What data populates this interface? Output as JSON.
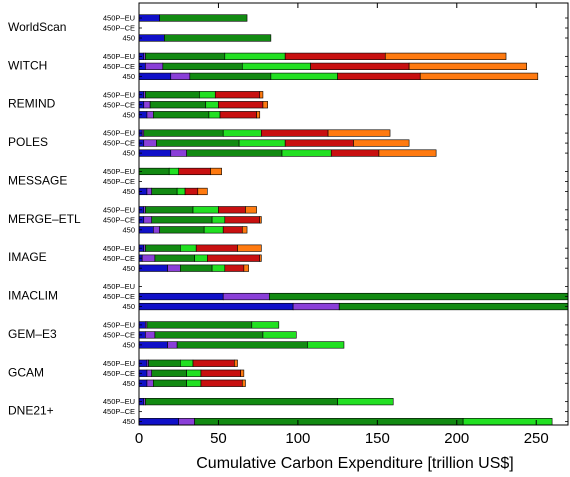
{
  "chart_data": {
    "type": "bar",
    "orientation": "horizontal",
    "stacked": true,
    "xlabel": "Cumulative Carbon Expenditure [trillion US$]",
    "xlim": [
      0,
      270
    ],
    "xticks": [
      0,
      50,
      100,
      150,
      200,
      250
    ],
    "grid": false,
    "legend": "none",
    "scenarios": [
      "450P–EU",
      "450P–CE",
      "450"
    ],
    "segment_colors": [
      "#1010c8",
      "#8a3fd8",
      "#128a12",
      "#22e022",
      "#c81010",
      "#ff7a10"
    ],
    "models": [
      {
        "name": "WorldScan",
        "bars": [
          {
            "scenario": "450P–EU",
            "segments": [
              13,
              0,
              55,
              0,
              0,
              0
            ]
          },
          {
            "scenario": "450P–CE",
            "segments": []
          },
          {
            "scenario": "450",
            "segments": [
              16,
              0,
              67,
              0,
              0,
              0
            ]
          }
        ]
      },
      {
        "name": "WITCH",
        "bars": [
          {
            "scenario": "450P–EU",
            "segments": [
              3,
              1,
              50,
              38,
              63,
              76
            ]
          },
          {
            "scenario": "450P–CE",
            "segments": [
              4,
              11,
              50,
              43,
              62,
              74
            ]
          },
          {
            "scenario": "450",
            "segments": [
              20,
              12,
              51,
              42,
              52,
              74
            ]
          }
        ]
      },
      {
        "name": "REMIND",
        "bars": [
          {
            "scenario": "450P–EU",
            "segments": [
              3,
              1,
              34,
              10,
              28,
              2
            ]
          },
          {
            "scenario": "450P–CE",
            "segments": [
              3,
              4,
              35,
              8,
              28,
              3
            ]
          },
          {
            "scenario": "450",
            "segments": [
              5,
              4,
              35,
              7,
              23,
              2
            ]
          }
        ]
      },
      {
        "name": "POLES",
        "bars": [
          {
            "scenario": "450P–EU",
            "segments": [
              2,
              1,
              50,
              24,
              42,
              39
            ]
          },
          {
            "scenario": "450P–CE",
            "segments": [
              3,
              8,
              52,
              29,
              43,
              35
            ]
          },
          {
            "scenario": "450",
            "segments": [
              20,
              10,
              60,
              31,
              30,
              36
            ]
          }
        ]
      },
      {
        "name": "MESSAGE",
        "bars": [
          {
            "scenario": "450P–EU",
            "segments": [
              0,
              0,
              19,
              6,
              20,
              7
            ]
          },
          {
            "scenario": "450P–CE",
            "segments": []
          },
          {
            "scenario": "450",
            "segments": [
              5,
              3,
              16,
              5,
              8,
              6
            ]
          }
        ]
      },
      {
        "name": "MERGE–ETL",
        "bars": [
          {
            "scenario": "450P–EU",
            "segments": [
              3,
              1,
              30,
              16,
              17,
              7
            ]
          },
          {
            "scenario": "450P–CE",
            "segments": [
              3,
              5,
              38,
              8,
              22,
              1
            ]
          },
          {
            "scenario": "450",
            "segments": [
              9,
              4,
              28,
              12,
              12,
              3
            ]
          }
        ]
      },
      {
        "name": "IMAGE",
        "bars": [
          {
            "scenario": "450P–EU",
            "segments": [
              3,
              1,
              22,
              10,
              26,
              15
            ]
          },
          {
            "scenario": "450P–CE",
            "segments": [
              2,
              8,
              25,
              8,
              33,
              1
            ]
          },
          {
            "scenario": "450",
            "segments": [
              18,
              8,
              20,
              8,
              12,
              3
            ]
          }
        ]
      },
      {
        "name": "IMACLIM",
        "bars": [
          {
            "scenario": "450P–EU",
            "segments": []
          },
          {
            "scenario": "450P–CE",
            "segments": [
              53,
              29,
              188,
              0,
              0,
              0
            ]
          },
          {
            "scenario": "450",
            "segments": [
              97,
              29,
              144,
              0,
              0,
              0
            ]
          }
        ]
      },
      {
        "name": "GEM–E3",
        "bars": [
          {
            "scenario": "450P–EU",
            "segments": [
              4,
              1,
              66,
              17,
              0,
              0
            ]
          },
          {
            "scenario": "450P–CE",
            "segments": [
              4,
              6,
              68,
              21,
              0,
              0
            ]
          },
          {
            "scenario": "450",
            "segments": [
              18,
              6,
              82,
              23,
              0,
              0
            ]
          }
        ]
      },
      {
        "name": "GCAM",
        "bars": [
          {
            "scenario": "450P–EU",
            "segments": [
              5,
              1,
              20,
              8,
              26,
              2
            ]
          },
          {
            "scenario": "450P–CE",
            "segments": [
              5,
              3,
              22,
              9,
              25,
              2
            ]
          },
          {
            "scenario": "450",
            "segments": [
              5,
              4,
              21,
              9,
              26,
              2
            ]
          }
        ]
      },
      {
        "name": "DNE21+",
        "bars": [
          {
            "scenario": "450P–EU",
            "segments": [
              3,
              1,
              121,
              35,
              0,
              0
            ]
          },
          {
            "scenario": "450P–CE",
            "segments": []
          },
          {
            "scenario": "450",
            "segments": [
              25,
              10,
              169,
              56,
              0,
              0
            ]
          }
        ]
      }
    ]
  }
}
